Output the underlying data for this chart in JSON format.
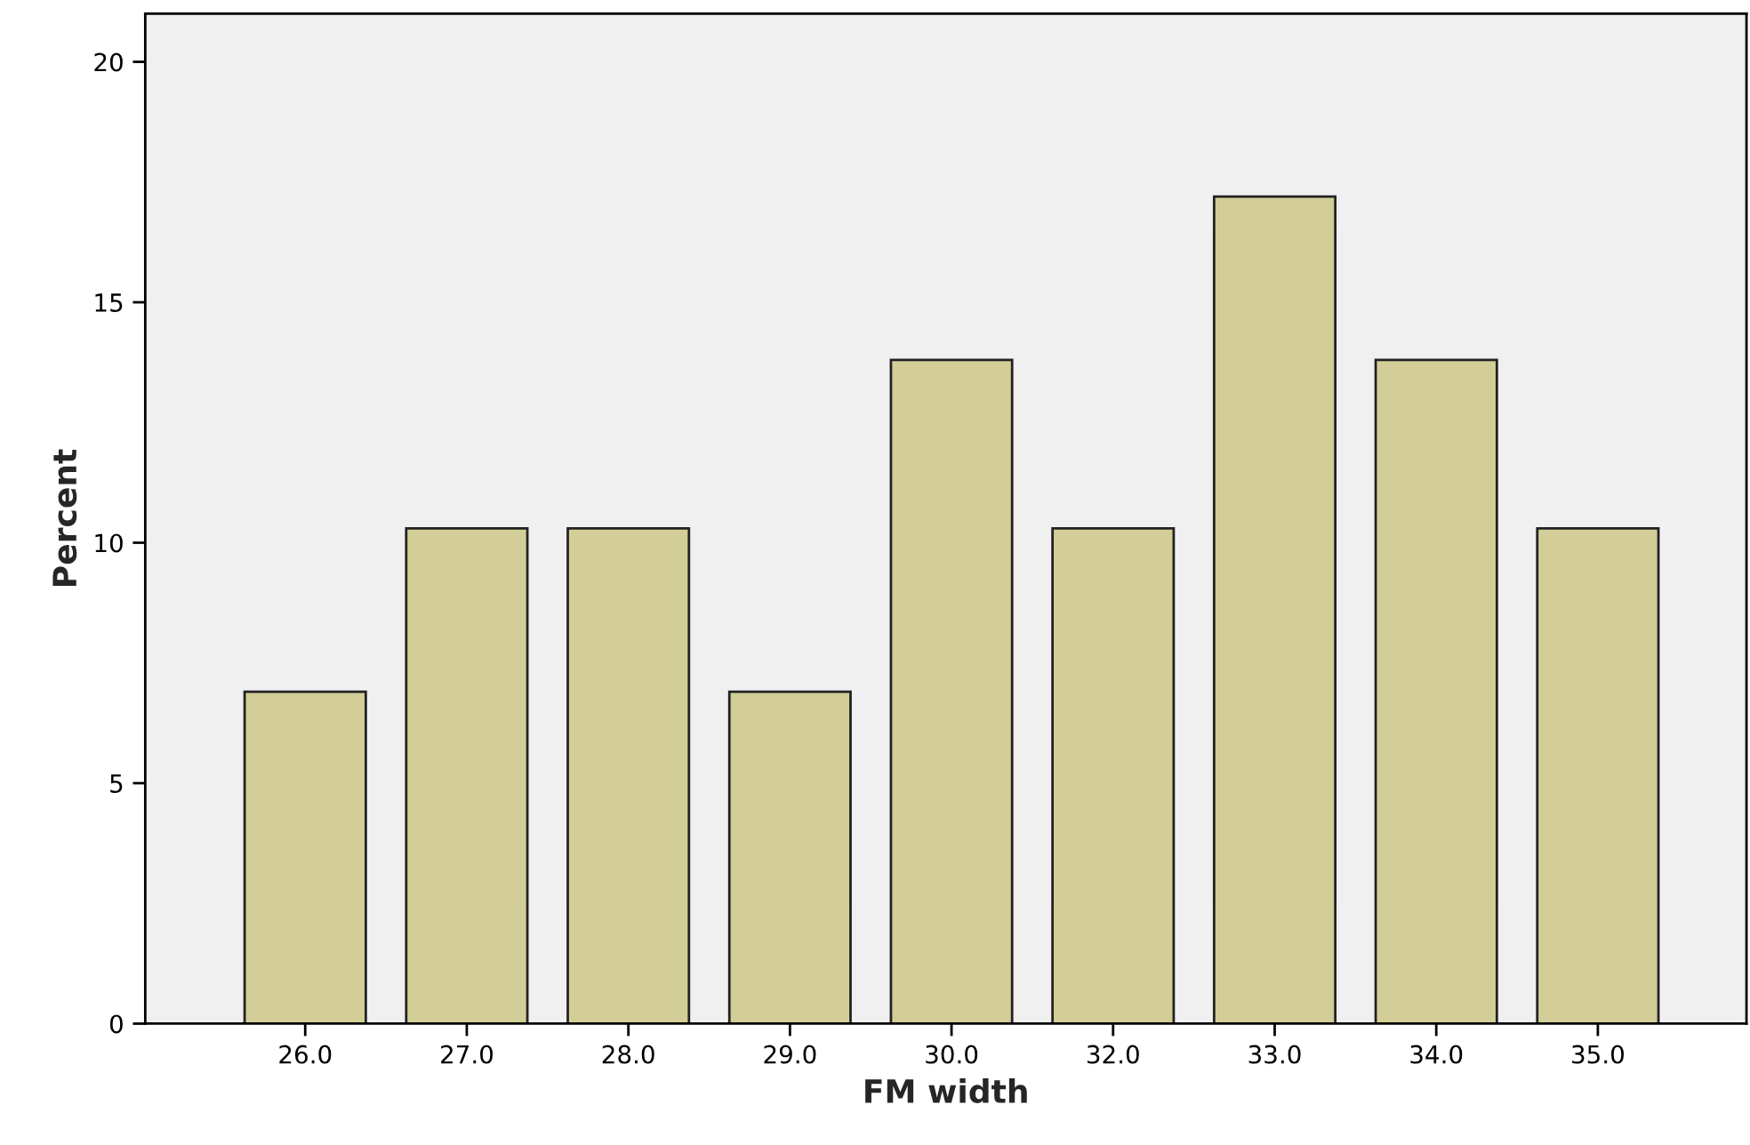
{
  "chart_data": {
    "type": "bar",
    "xlabel": "FM width",
    "ylabel": "Percent",
    "categories": [
      "26.0",
      "27.0",
      "28.0",
      "29.0",
      "30.0",
      "32.0",
      "33.0",
      "34.0",
      "35.0"
    ],
    "values": [
      6.9,
      10.3,
      10.3,
      6.9,
      13.8,
      10.3,
      17.2,
      13.8,
      10.3
    ],
    "color": "#d3ce97",
    "ylim": [
      0,
      21
    ],
    "yticks": [
      0,
      5,
      10,
      15,
      20
    ],
    "grid": false,
    "legend": false
  }
}
